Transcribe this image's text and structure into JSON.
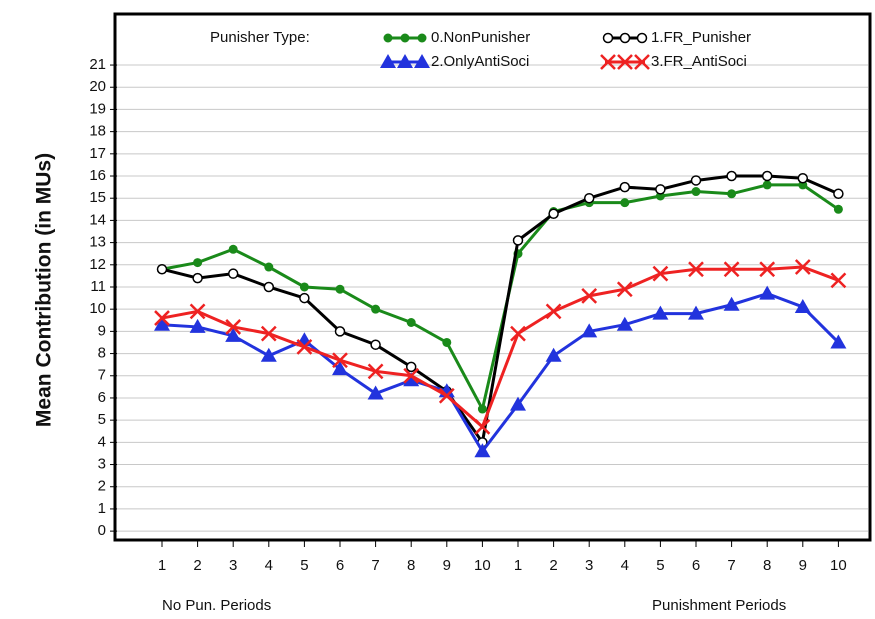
{
  "chart_data": {
    "type": "line",
    "y_label": "Mean Contribution (in MUs)",
    "legend_title": "Punisher Type:",
    "annotations": [
      "No Pun. Periods",
      "Punishment Periods"
    ],
    "categories": [
      "1",
      "2",
      "3",
      "4",
      "5",
      "6",
      "7",
      "8",
      "9",
      "10",
      "1",
      "2",
      "3",
      "4",
      "5",
      "6",
      "7",
      "8",
      "9",
      "10"
    ],
    "ylim": [
      -0.4,
      23.3
    ],
    "yticks": [
      0,
      1,
      2,
      3,
      4,
      5,
      6,
      7,
      8,
      9,
      10,
      11,
      12,
      13,
      14,
      15,
      16,
      17,
      18,
      19,
      20,
      21
    ],
    "grid": true,
    "series": [
      {
        "name": "0.NonPunisher",
        "color": "#1a8a1a",
        "marker": "filled-circle",
        "values": [
          11.8,
          12.1,
          12.7,
          11.9,
          11.0,
          10.9,
          10.0,
          9.4,
          8.5,
          5.5,
          12.5,
          14.4,
          14.8,
          14.8,
          15.1,
          15.3,
          15.2,
          15.6,
          15.6,
          14.5
        ]
      },
      {
        "name": "1.FR_Punisher",
        "color": "#000000",
        "marker": "open-circle",
        "values": [
          11.8,
          11.4,
          11.6,
          11.0,
          10.5,
          9.0,
          8.4,
          7.4,
          6.3,
          4.0,
          13.1,
          14.3,
          15.0,
          15.5,
          15.4,
          15.8,
          16.0,
          16.0,
          15.9,
          15.2
        ]
      },
      {
        "name": "2.OnlyAntiSoci",
        "color": "#2233dd",
        "marker": "triangle",
        "values": [
          9.3,
          9.2,
          8.8,
          7.9,
          8.6,
          7.3,
          6.2,
          6.8,
          6.3,
          3.6,
          5.7,
          7.9,
          9.0,
          9.3,
          9.8,
          9.8,
          10.2,
          10.7,
          10.1,
          8.5
        ]
      },
      {
        "name": "3.FR_AntiSoci",
        "color": "#ee2222",
        "marker": "x",
        "values": [
          9.6,
          9.9,
          9.2,
          8.9,
          8.3,
          7.7,
          7.2,
          7.0,
          6.1,
          4.7,
          8.9,
          9.9,
          10.6,
          10.9,
          11.6,
          11.8,
          11.8,
          11.8,
          11.9,
          11.3
        ]
      }
    ]
  }
}
